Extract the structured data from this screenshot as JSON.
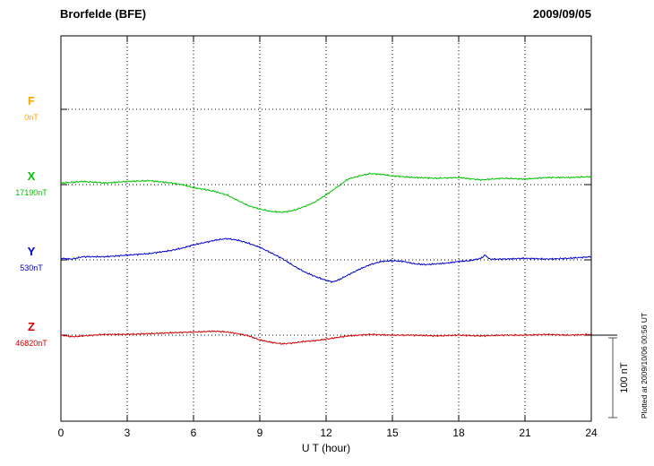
{
  "header": {
    "station": "Brorfelde (BFE)",
    "date": "2009/09/05"
  },
  "axes": {
    "xlabel": "U T (hour)"
  },
  "scale_bar": {
    "label": "100 nT"
  },
  "side_note": {
    "text": "Plotted at 2009/10/06 00:56 UT"
  },
  "chart_data": {
    "type": "line",
    "title": "Brorfelde (BFE)",
    "date": "2009/09/05",
    "xlabel": "U T (hour)",
    "x_range": [
      0,
      24
    ],
    "x_ticks": [
      0,
      3,
      6,
      9,
      12,
      15,
      18,
      21,
      24
    ],
    "grid": "dotted",
    "scale_bar_nT": 100,
    "series": [
      {
        "name": "F",
        "baseline_label": "0nT",
        "color": "#FFA500",
        "has_trace": false,
        "x": [],
        "offsets_nT": []
      },
      {
        "name": "X",
        "baseline_label": "17190nT",
        "color": "#00C000",
        "has_trace": true,
        "x": [
          0,
          1,
          2,
          3,
          4,
          5,
          5.5,
          6,
          6.5,
          7,
          7.5,
          8,
          8.5,
          9,
          9.5,
          10,
          10.5,
          11,
          11.5,
          12,
          12.5,
          13,
          13.5,
          14,
          14.5,
          15,
          16,
          17,
          18,
          19,
          20,
          21,
          22,
          23,
          24
        ],
        "offsets_nT": [
          2,
          4,
          2,
          4,
          5,
          2,
          0,
          -4,
          -6,
          -9,
          -13,
          -20,
          -27,
          -31,
          -34,
          -35,
          -33,
          -28,
          -22,
          -13,
          -3,
          7,
          11,
          14,
          13,
          11,
          9,
          8,
          9,
          6,
          8,
          7,
          9,
          9,
          10
        ]
      },
      {
        "name": "Y",
        "baseline_label": "530nT",
        "color": "#0000D0",
        "has_trace": true,
        "x": [
          0,
          0.5,
          1,
          2,
          3,
          4,
          5,
          5.5,
          6,
          6.5,
          7,
          7.5,
          8,
          8.5,
          9,
          9.5,
          10,
          10.5,
          11,
          11.5,
          12,
          12.3,
          12.6,
          13,
          13.5,
          14,
          14.5,
          15,
          15.5,
          16,
          16.5,
          17,
          17.5,
          18,
          18.5,
          19,
          19.2,
          19.4,
          20,
          21,
          22,
          23,
          24
        ],
        "offsets_nT": [
          2,
          1,
          4,
          4,
          6,
          8,
          12,
          15,
          19,
          22,
          25,
          27,
          25,
          21,
          16,
          9,
          2,
          -7,
          -15,
          -21,
          -26,
          -28,
          -25,
          -19,
          -12,
          -6,
          -2,
          -1,
          -2,
          -5,
          -6,
          -5,
          -4,
          -2,
          -1,
          2,
          6,
          1,
          1,
          2,
          1,
          2,
          4
        ]
      },
      {
        "name": "Z",
        "baseline_label": "46820nT",
        "color": "#D00000",
        "has_trace": true,
        "x": [
          0,
          0.5,
          1,
          2,
          3,
          4,
          5,
          6,
          7,
          7.5,
          8,
          8.5,
          9,
          9.5,
          10,
          10.5,
          11,
          11.5,
          12,
          12.5,
          13,
          14,
          15,
          16,
          17,
          18,
          19,
          20,
          21,
          22,
          23,
          24
        ],
        "offsets_nT": [
          0,
          -2,
          -1,
          1,
          1,
          2,
          3,
          4,
          5,
          4,
          2,
          -1,
          -6,
          -9,
          -11,
          -10,
          -8,
          -7,
          -5,
          -3,
          -1,
          1,
          0,
          0,
          -1,
          0,
          -1,
          0,
          0,
          1,
          0,
          1
        ]
      }
    ]
  }
}
